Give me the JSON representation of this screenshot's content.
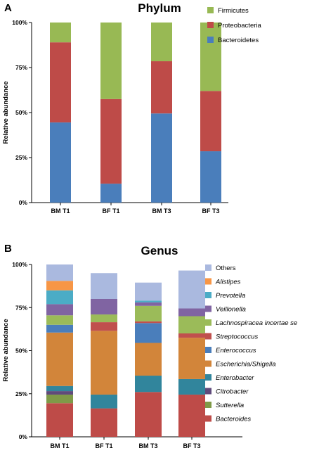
{
  "chart_data": [
    {
      "type": "bar",
      "stacked": true,
      "panel": "A",
      "title": "Phylum",
      "ylabel": "Relative abundance",
      "ylim": [
        0,
        100
      ],
      "yticks": [
        "0%",
        "25%",
        "50%",
        "75%",
        "100%"
      ],
      "categories": [
        "BM T1",
        "BF T1",
        "BM T3",
        "BF T3"
      ],
      "series": [
        {
          "name": "Bacteroidetes",
          "color": "#4a7ebb",
          "values": [
            44.5,
            10.5,
            49.5,
            28.5
          ]
        },
        {
          "name": "Proteobacteria",
          "color": "#be4b48",
          "values": [
            44.5,
            47.0,
            29.0,
            33.5
          ]
        },
        {
          "name": "Firmicutes",
          "color": "#98b954",
          "values": [
            11.0,
            42.5,
            21.5,
            38.0
          ]
        }
      ],
      "legend_position": "top-right"
    },
    {
      "type": "bar",
      "stacked": true,
      "panel": "B",
      "title": "Genus",
      "ylabel": "Relative abundance",
      "ylim": [
        0,
        100
      ],
      "yticks": [
        "0%",
        "25%",
        "50%",
        "75%",
        "100%"
      ],
      "categories": [
        "BM T1",
        "BF T1",
        "BM T3",
        "BF T3"
      ],
      "series": [
        {
          "name": "Bacteroides",
          "italic": true,
          "color": "#be4b48",
          "values": [
            19.5,
            16.5,
            26.0,
            24.5
          ]
        },
        {
          "name": "Sutterella",
          "italic": true,
          "color": "#7f9a48",
          "values": [
            5.0,
            0,
            0,
            0
          ]
        },
        {
          "name": "Citrobacter",
          "italic": true,
          "color": "#604a7b",
          "values": [
            2.0,
            0,
            0,
            0
          ]
        },
        {
          "name": "Enterobacter",
          "italic": true,
          "color": "#31859c",
          "values": [
            3.0,
            8.0,
            9.5,
            9.0
          ]
        },
        {
          "name": "Escherichia/Shigella",
          "italic": true,
          "color": "#d2853a",
          "values": [
            31.0,
            37.0,
            19.0,
            24.0
          ]
        },
        {
          "name": "Enterococcus",
          "italic": true,
          "color": "#4a7ebb",
          "values": [
            4.5,
            0,
            11.5,
            0
          ]
        },
        {
          "name": "Streptococcus",
          "italic": true,
          "color": "#c0504d",
          "values": [
            0,
            5.0,
            1.0,
            2.5
          ]
        },
        {
          "name": "Lachnospiracea incertae se",
          "italic": true,
          "color": "#9bbb59",
          "values": [
            5.5,
            4.5,
            9.0,
            10.0
          ]
        },
        {
          "name": "Veillonella",
          "italic": true,
          "color": "#8064a2",
          "values": [
            6.5,
            9.0,
            2.0,
            4.5
          ]
        },
        {
          "name": "Prevotella",
          "italic": true,
          "color": "#4bacc6",
          "values": [
            8.0,
            0,
            1.0,
            0
          ]
        },
        {
          "name": "Alistipes",
          "italic": true,
          "color": "#f79646",
          "values": [
            5.5,
            0,
            0,
            0
          ]
        },
        {
          "name": "Others",
          "italic": false,
          "color": "#aab9df",
          "values": [
            9.5,
            15.0,
            10.5,
            22.0
          ]
        }
      ],
      "legend_position": "right"
    }
  ]
}
